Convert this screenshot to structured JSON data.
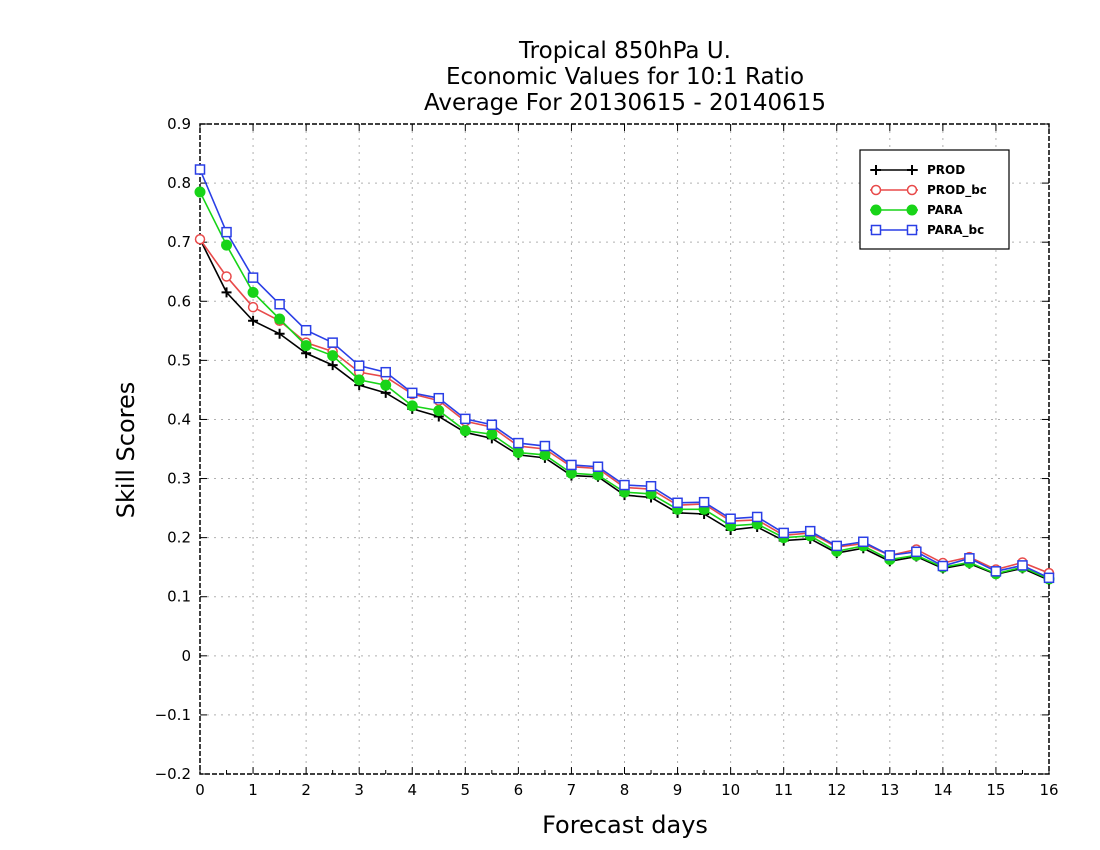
{
  "chart_data": {
    "type": "line",
    "title_lines": [
      "Tropical 850hPa U.",
      "Economic Values for 10:1 Ratio",
      "Average For 20130615 - 20140615"
    ],
    "xlabel": "Forecast days",
    "ylabel": "Skill Scores",
    "xlim": [
      0,
      16
    ],
    "ylim": [
      -0.2,
      0.9
    ],
    "x_ticks": [
      0,
      1,
      2,
      3,
      4,
      5,
      6,
      7,
      8,
      9,
      10,
      11,
      12,
      13,
      14,
      15,
      16
    ],
    "x_tick_labels": [
      "0",
      "1",
      "2",
      "3",
      "4",
      "5",
      "6",
      "7",
      "8",
      "9",
      "10",
      "11",
      "12",
      "13",
      "14",
      "15",
      "16"
    ],
    "y_ticks": [
      -0.2,
      -0.1,
      0,
      0.1,
      0.2,
      0.3,
      0.4,
      0.5,
      0.6,
      0.7,
      0.8,
      0.9
    ],
    "y_tick_labels": [
      "−0.2",
      "−0.1",
      "0",
      "0.1",
      "0.2",
      "0.3",
      "0.4",
      "0.5",
      "0.6",
      "0.7",
      "0.8",
      "0.9"
    ],
    "grid": true,
    "legend_position": "top-right",
    "x": [
      0,
      0.5,
      1,
      1.5,
      2,
      2.5,
      3,
      3.5,
      4,
      4.5,
      5,
      5.5,
      6,
      6.5,
      7,
      7.5,
      8,
      8.5,
      9,
      9.5,
      10,
      10.5,
      11,
      11.5,
      12,
      12.5,
      13,
      13.5,
      14,
      14.5,
      15,
      15.5,
      16
    ],
    "series": [
      {
        "name": "PROD",
        "color": "#000000",
        "marker": "plus",
        "values": [
          0.705,
          0.615,
          0.567,
          0.545,
          0.512,
          0.492,
          0.458,
          0.445,
          0.418,
          0.405,
          0.378,
          0.368,
          0.34,
          0.335,
          0.305,
          0.303,
          0.272,
          0.268,
          0.242,
          0.24,
          0.213,
          0.218,
          0.195,
          0.198,
          0.174,
          0.182,
          0.16,
          0.168,
          0.148,
          0.156,
          0.138,
          0.148,
          0.128
        ]
      },
      {
        "name": "PROD_bc",
        "color": "#e84a4a",
        "marker": "open-circle",
        "values": [
          0.705,
          0.642,
          0.59,
          0.567,
          0.53,
          0.515,
          0.48,
          0.472,
          0.443,
          0.432,
          0.397,
          0.387,
          0.355,
          0.35,
          0.32,
          0.317,
          0.285,
          0.282,
          0.255,
          0.257,
          0.228,
          0.23,
          0.204,
          0.208,
          0.184,
          0.19,
          0.17,
          0.18,
          0.157,
          0.167,
          0.146,
          0.158,
          0.14
        ]
      },
      {
        "name": "PARA",
        "color": "#18d418",
        "marker": "filled-circle",
        "values": [
          0.785,
          0.695,
          0.615,
          0.57,
          0.525,
          0.508,
          0.467,
          0.458,
          0.423,
          0.415,
          0.381,
          0.375,
          0.344,
          0.34,
          0.309,
          0.306,
          0.277,
          0.274,
          0.248,
          0.248,
          0.22,
          0.223,
          0.2,
          0.203,
          0.177,
          0.186,
          0.163,
          0.17,
          0.15,
          0.158,
          0.139,
          0.15,
          0.13
        ]
      },
      {
        "name": "PARA_bc",
        "color": "#2a3fe6",
        "marker": "open-square",
        "values": [
          0.823,
          0.717,
          0.64,
          0.595,
          0.551,
          0.53,
          0.491,
          0.48,
          0.445,
          0.436,
          0.401,
          0.391,
          0.36,
          0.355,
          0.323,
          0.32,
          0.289,
          0.287,
          0.259,
          0.26,
          0.232,
          0.235,
          0.208,
          0.211,
          0.186,
          0.193,
          0.17,
          0.176,
          0.152,
          0.165,
          0.143,
          0.153,
          0.132
        ]
      }
    ]
  }
}
